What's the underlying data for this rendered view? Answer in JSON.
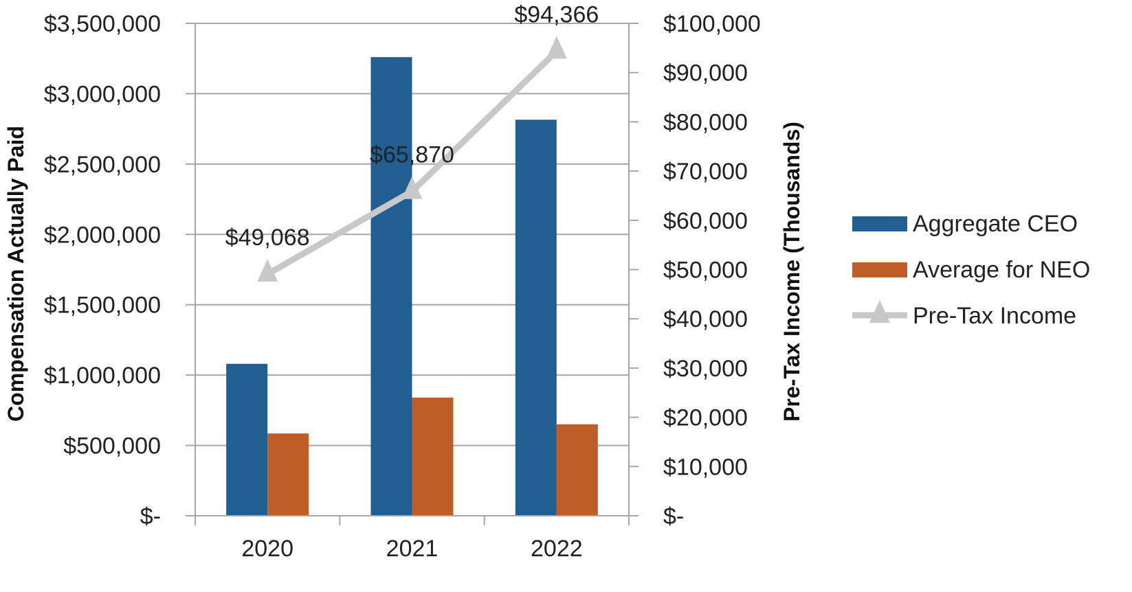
{
  "chart_data": {
    "type": "bar",
    "categories": [
      "2020",
      "2021",
      "2022"
    ],
    "series": [
      {
        "name": "Aggregate CEO",
        "kind": "bar",
        "axis": "left",
        "color": "#215f93",
        "values": [
          1080000,
          3260000,
          2815000
        ]
      },
      {
        "name": "Average for NEO",
        "kind": "bar",
        "axis": "left",
        "color": "#bd5e28",
        "values": [
          585000,
          840000,
          650000
        ]
      },
      {
        "name": "Pre-Tax Income",
        "kind": "line",
        "axis": "right",
        "color": "#c8c8c8",
        "marker": "triangle",
        "values": [
          49068,
          65870,
          94366
        ],
        "data_labels": [
          "$49,068",
          "$65,870",
          "$94,366"
        ]
      }
    ],
    "y_left": {
      "label": "Compensation Actually Paid",
      "lim": [
        0,
        3500000
      ],
      "ticks": [
        0,
        500000,
        1000000,
        1500000,
        2000000,
        2500000,
        3000000,
        3500000
      ],
      "tick_labels": [
        "$-",
        "$500,000",
        "$1,000,000",
        "$1,500,000",
        "$2,000,000",
        "$2,500,000",
        "$3,000,000",
        "$3,500,000"
      ]
    },
    "y_right": {
      "label": "Pre-Tax Income (Thousands)",
      "lim": [
        0,
        100000
      ],
      "ticks": [
        0,
        10000,
        20000,
        30000,
        40000,
        50000,
        60000,
        70000,
        80000,
        90000,
        100000
      ],
      "tick_labels": [
        "$-",
        "$10,000",
        "$20,000",
        "$30,000",
        "$40,000",
        "$50,000",
        "$60,000",
        "$70,000",
        "$80,000",
        "$90,000",
        "$100,000"
      ]
    },
    "grid": true,
    "legend_position": "right",
    "legend": [
      "Aggregate CEO",
      "Average for NEO",
      "Pre-Tax Income"
    ]
  }
}
